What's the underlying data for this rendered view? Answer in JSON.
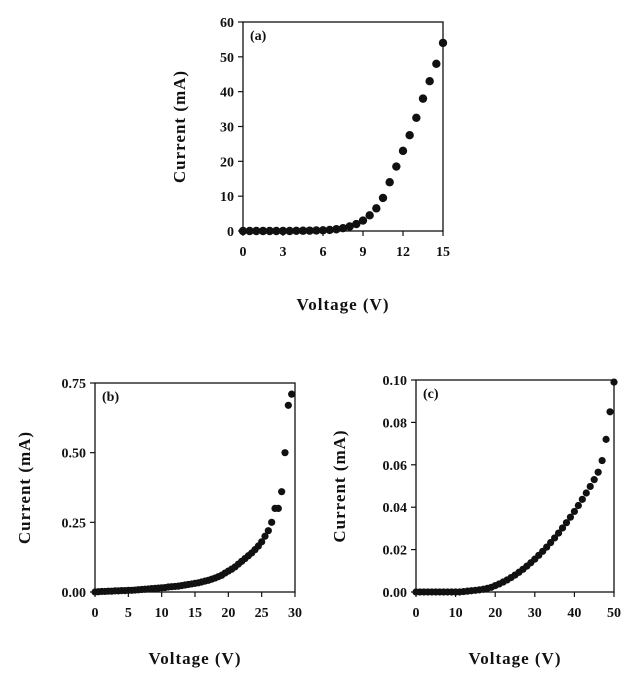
{
  "chart_data": [
    {
      "type": "scatter",
      "panel_label": "(a)",
      "xlabel": "Voltage (V)",
      "ylabel": "Current (mA)",
      "xlim": [
        0,
        15
      ],
      "ylim": [
        0,
        60
      ],
      "xticks": [
        "0",
        "3",
        "6",
        "9",
        "12",
        "15"
      ],
      "yticks": [
        "0",
        "10",
        "20",
        "30",
        "40",
        "50",
        "60"
      ],
      "grid": false,
      "series": [
        {
          "x": [
            0,
            0.5,
            1,
            1.5,
            2,
            2.5,
            3,
            3.5,
            4,
            4.5,
            5,
            5.5,
            6,
            6.5,
            7,
            7.5,
            8,
            8.5,
            9,
            9.5,
            10,
            10.5,
            11,
            11.5,
            12,
            12.5,
            13,
            13.5,
            14,
            14.5,
            15
          ],
          "y": [
            0,
            0,
            0,
            0,
            0,
            0,
            0,
            0,
            0.05,
            0.08,
            0.1,
            0.15,
            0.2,
            0.3,
            0.5,
            0.8,
            1.3,
            2.0,
            3.0,
            4.5,
            6.5,
            9.5,
            14,
            18.5,
            23,
            27.5,
            32.5,
            38,
            43,
            48,
            54
          ]
        }
      ]
    },
    {
      "type": "scatter",
      "panel_label": "(b)",
      "xlabel": "Voltage (V)",
      "ylabel": "Current (mA)",
      "xlim": [
        0,
        30
      ],
      "ylim": [
        0,
        0.75
      ],
      "xticks": [
        "0",
        "5",
        "10",
        "15",
        "20",
        "25",
        "30"
      ],
      "yticks": [
        "0.00",
        "0.25",
        "0.50",
        "0.75"
      ],
      "grid": false,
      "series": [
        {
          "x": [
            0,
            0.5,
            1,
            1.5,
            2,
            2.5,
            3,
            3.5,
            4,
            4.5,
            5,
            5.5,
            6,
            6.5,
            7,
            7.5,
            8,
            8.5,
            9,
            9.5,
            10,
            10.5,
            11,
            11.5,
            12,
            12.5,
            13,
            13.5,
            14,
            14.5,
            15,
            15.5,
            16,
            16.5,
            17,
            17.5,
            18,
            18.5,
            19,
            19.5,
            20,
            20.5,
            21,
            21.5,
            22,
            22.5,
            23,
            23.5,
            24,
            24.5,
            25,
            25.5,
            26,
            26.5,
            27,
            27.5,
            28,
            28.5,
            29,
            29.5
          ],
          "y": [
            0,
            0.001,
            0.002,
            0.002,
            0.003,
            0.003,
            0.004,
            0.004,
            0.005,
            0.005,
            0.006,
            0.006,
            0.007,
            0.008,
            0.009,
            0.01,
            0.011,
            0.012,
            0.013,
            0.014,
            0.015,
            0.016,
            0.018,
            0.019,
            0.02,
            0.021,
            0.023,
            0.025,
            0.027,
            0.029,
            0.031,
            0.033,
            0.036,
            0.039,
            0.042,
            0.046,
            0.05,
            0.055,
            0.06,
            0.068,
            0.075,
            0.082,
            0.09,
            0.1,
            0.11,
            0.12,
            0.13,
            0.14,
            0.152,
            0.165,
            0.18,
            0.2,
            0.22,
            0.25,
            0.3,
            0.3,
            0.36,
            0.5,
            0.67,
            0.71
          ]
        }
      ]
    },
    {
      "type": "scatter",
      "panel_label": "(c)",
      "xlabel": "Voltage (V)",
      "ylabel": "Current (mA)",
      "xlim": [
        0,
        50
      ],
      "ylim": [
        0,
        0.1
      ],
      "xticks": [
        "0",
        "10",
        "20",
        "30",
        "40",
        "50"
      ],
      "yticks": [
        "0.00",
        "0.02",
        "0.04",
        "0.06",
        "0.08",
        "0.10"
      ],
      "grid": false,
      "series": [
        {
          "x": [
            0,
            1,
            2,
            3,
            4,
            5,
            6,
            7,
            8,
            9,
            10,
            11,
            12,
            13,
            14,
            15,
            16,
            17,
            18,
            19,
            20,
            21,
            22,
            23,
            24,
            25,
            26,
            27,
            28,
            29,
            30,
            31,
            32,
            33,
            34,
            35,
            36,
            37,
            38,
            39,
            40,
            41,
            42,
            43,
            44,
            45,
            46,
            47,
            48,
            49,
            50
          ],
          "y": [
            0,
            0,
            0,
            0,
            0,
            0,
            0,
            0,
            0,
            0,
            0,
            0,
            0.0002,
            0.0004,
            0.0006,
            0.0008,
            0.001,
            0.0013,
            0.0017,
            0.0022,
            0.003,
            0.0038,
            0.0047,
            0.0057,
            0.0068,
            0.008,
            0.0093,
            0.0107,
            0.0122,
            0.0138,
            0.0155,
            0.0173,
            0.0192,
            0.0212,
            0.0233,
            0.0255,
            0.0278,
            0.0302,
            0.0327,
            0.0353,
            0.038,
            0.0408,
            0.0437,
            0.0467,
            0.0498,
            0.053,
            0.0565,
            0.062,
            0.072,
            0.085,
            0.099
          ]
        }
      ]
    }
  ]
}
